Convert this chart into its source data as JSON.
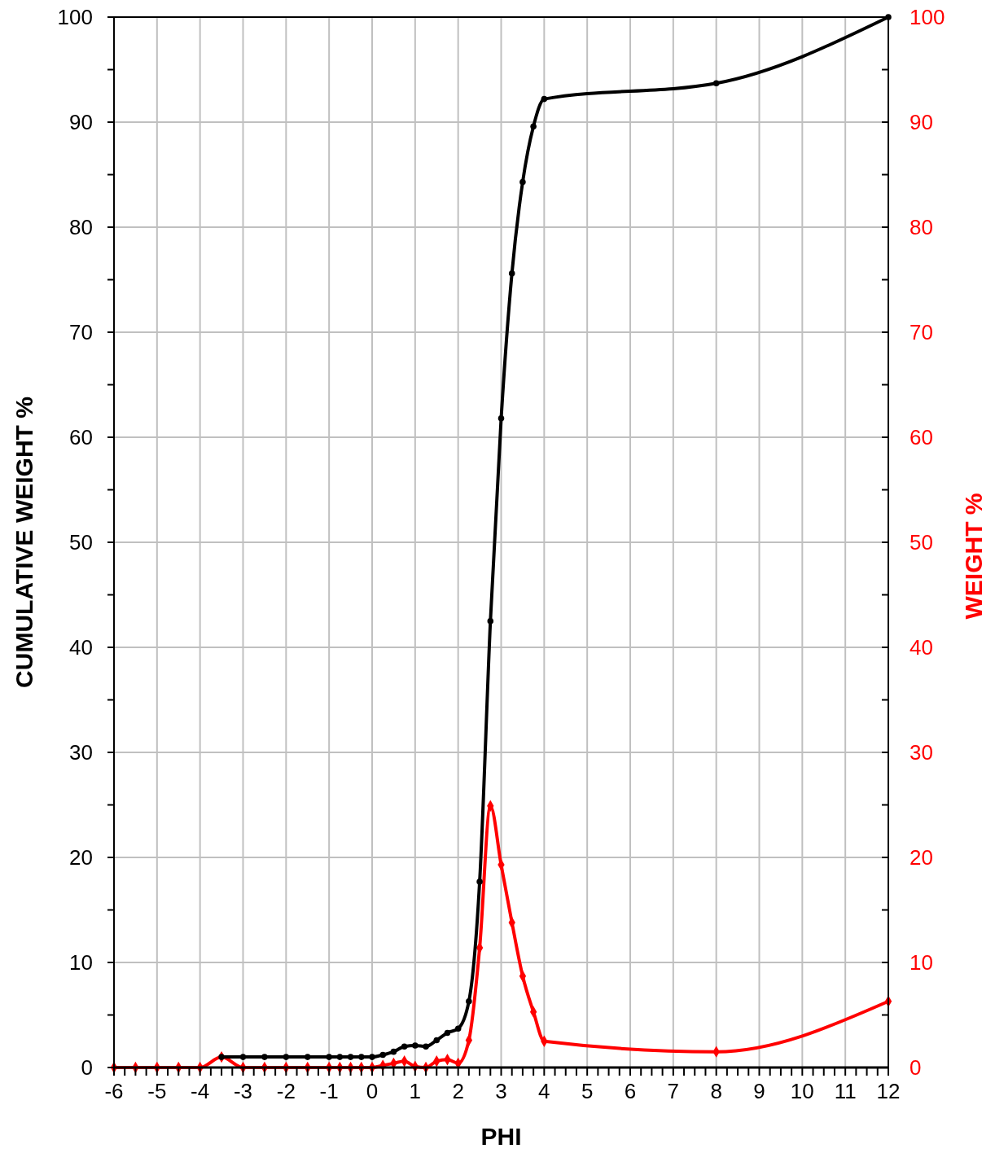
{
  "chart_data": {
    "type": "line",
    "xlabel": "PHI",
    "ylabel": "CUMULATIVE WEIGHT %",
    "y2label": "WEIGHT %",
    "grid": true,
    "line_style": "solid",
    "xlim": [
      -6,
      12
    ],
    "xticks": [
      -6,
      -5,
      -4,
      -3,
      -2,
      -1,
      0,
      1,
      2,
      3,
      4,
      5,
      6,
      7,
      8,
      9,
      10,
      11,
      12,
      {
        "value": -5.75,
        "label": null
      },
      {
        "value": -5.5,
        "label": null
      },
      {
        "value": -5.25,
        "label": null
      },
      {
        "value": -4.75,
        "label": null
      },
      {
        "value": -4.5,
        "label": null
      },
      {
        "value": -4.25,
        "label": null
      },
      {
        "value": -3.75,
        "label": null
      },
      {
        "value": -3.5,
        "label": null
      },
      {
        "value": -3.25,
        "label": null
      },
      {
        "value": -2.75,
        "label": null
      },
      {
        "value": -2.5,
        "label": null
      },
      {
        "value": -2.25,
        "label": null
      },
      {
        "value": -1.75,
        "label": null
      },
      {
        "value": -1.5,
        "label": null
      },
      {
        "value": -1.25,
        "label": null
      },
      {
        "value": -0.75,
        "label": null
      },
      {
        "value": -0.5,
        "label": null
      },
      {
        "value": -0.25,
        "label": null
      },
      {
        "value": 0.25,
        "label": null
      },
      {
        "value": 0.5,
        "label": null
      },
      {
        "value": 0.75,
        "label": null
      },
      {
        "value": 1.25,
        "label": null
      },
      {
        "value": 1.5,
        "label": null
      },
      {
        "value": 1.75,
        "label": null
      },
      {
        "value": 2.25,
        "label": null
      },
      {
        "value": 2.5,
        "label": null
      },
      {
        "value": 2.75,
        "label": null
      },
      {
        "value": 3.25,
        "label": null
      },
      {
        "value": 3.5,
        "label": null
      },
      {
        "value": 3.75,
        "label": null
      },
      {
        "value": 4.25,
        "label": null
      },
      {
        "value": 4.5,
        "label": null
      },
      {
        "value": 4.75,
        "label": null
      },
      {
        "value": 5.25,
        "label": null
      },
      {
        "value": 5.5,
        "label": null
      },
      {
        "value": 5.75,
        "label": null
      },
      {
        "value": 6.25,
        "label": null
      },
      {
        "value": 6.5,
        "label": null
      },
      {
        "value": 6.75,
        "label": null
      },
      {
        "value": 7.25,
        "label": null
      },
      {
        "value": 7.5,
        "label": null
      },
      {
        "value": 7.75,
        "label": null
      },
      {
        "value": 8.25,
        "label": null
      },
      {
        "value": 8.5,
        "label": null
      },
      {
        "value": 8.75,
        "label": null
      },
      {
        "value": 9.25,
        "label": null
      },
      {
        "value": 9.5,
        "label": null
      },
      {
        "value": 9.75,
        "label": null
      },
      {
        "value": 10.25,
        "label": null
      },
      {
        "value": 10.5,
        "label": null
      },
      {
        "value": 10.75,
        "label": null
      },
      {
        "value": 11.25,
        "label": null
      },
      {
        "value": 11.5,
        "label": null
      },
      {
        "value": 11.75,
        "label": null
      }
    ],
    "ylim": [
      0,
      100
    ],
    "yticks": [
      0,
      10,
      20,
      30,
      40,
      50,
      60,
      70,
      80,
      90,
      100,
      {
        "value": 5,
        "label": null
      },
      {
        "value": 15,
        "label": null
      },
      {
        "value": 25,
        "label": null
      },
      {
        "value": 35,
        "label": null
      },
      {
        "value": 45,
        "label": null
      },
      {
        "value": 55,
        "label": null
      },
      {
        "value": 65,
        "label": null
      },
      {
        "value": 75,
        "label": null
      },
      {
        "value": 85,
        "label": null
      },
      {
        "value": 95,
        "label": null
      }
    ],
    "y2lim": [
      0,
      100
    ],
    "y2ticks": [
      0,
      10,
      20,
      30,
      40,
      50,
      60,
      70,
      80,
      90,
      100,
      {
        "value": 5,
        "label": null
      },
      {
        "value": 15,
        "label": null
      },
      {
        "value": 25,
        "label": null
      },
      {
        "value": 35,
        "label": null
      },
      {
        "value": 45,
        "label": null
      },
      {
        "value": 55,
        "label": null
      },
      {
        "value": 65,
        "label": null
      },
      {
        "value": 75,
        "label": null
      },
      {
        "value": 85,
        "label": null
      },
      {
        "value": 95,
        "label": null
      }
    ],
    "series": [
      {
        "color": "#000000",
        "marker": "circle",
        "x": [
          -3.5,
          -3,
          -2.5,
          -2,
          -1.5,
          -1,
          -0.75,
          -0.5,
          -0.25,
          0,
          0.25,
          0.5,
          0.75,
          1,
          1.25,
          1.5,
          1.75,
          2,
          2.25,
          2.5,
          2.75,
          3,
          3.25,
          3.5,
          3.75,
          4,
          8,
          12
        ],
        "values": [
          1.0,
          1.0,
          1.0,
          1.0,
          1.0,
          1.0,
          1.0,
          1.0,
          1.0,
          1.0,
          1.2,
          1.5,
          2.0,
          2.1,
          2.0,
          2.6,
          3.3,
          3.7,
          6.3,
          17.7,
          42.5,
          61.8,
          75.6,
          84.3,
          89.6,
          92.2,
          93.7,
          100
        ]
      },
      {
        "color": "#ff0000",
        "marker": "diamond",
        "axis": "y2",
        "x": [
          -6,
          -5.5,
          -5,
          -4.5,
          -4,
          -3.5,
          -3,
          -2.5,
          -2,
          -1.5,
          -1,
          -0.75,
          -0.5,
          -0.25,
          0,
          0.25,
          0.5,
          0.75,
          1,
          1.25,
          1.5,
          1.75,
          2,
          2.25,
          2.5,
          2.75,
          3,
          3.25,
          3.5,
          3.75,
          4,
          8,
          12
        ],
        "values": [
          0,
          0,
          0,
          0,
          0,
          1.0,
          0,
          0,
          0,
          0,
          0,
          0,
          0,
          0,
          0,
          0.2,
          0.4,
          0.6,
          0.1,
          0,
          0.6,
          0.75,
          0.4,
          2.6,
          11.4,
          24.9,
          19.3,
          13.8,
          8.7,
          5.3,
          2.5,
          1.5,
          6.3
        ]
      }
    ]
  }
}
